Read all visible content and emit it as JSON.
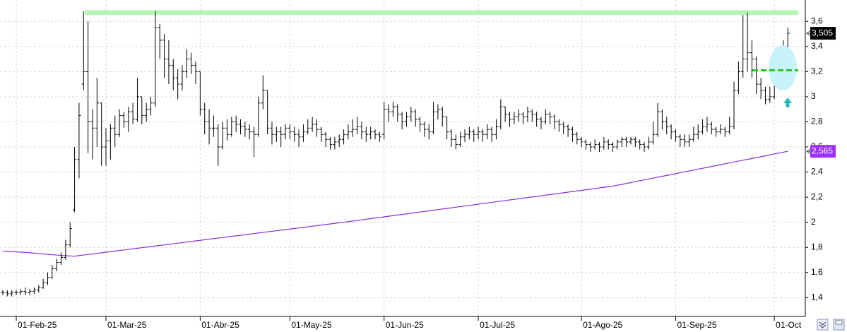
{
  "chart_data": {
    "type": "ohlc",
    "categories": [
      null,
      null,
      null,
      "01-Feb-25",
      null,
      null,
      null,
      null,
      null,
      null,
      null,
      null,
      null,
      null,
      null,
      null,
      null,
      null,
      null,
      null,
      null,
      null,
      null,
      "01-Mar-25",
      null,
      null,
      null,
      null,
      null,
      null,
      null,
      null,
      null,
      null,
      null,
      null,
      null,
      null,
      null,
      null,
      null,
      null,
      null,
      null,
      "01-Abr-25",
      null,
      null,
      null,
      null,
      null,
      null,
      null,
      null,
      null,
      null,
      null,
      null,
      null,
      null,
      null,
      null,
      null,
      null,
      null,
      "01-May-25",
      null,
      null,
      null,
      null,
      null,
      null,
      null,
      null,
      null,
      null,
      null,
      null,
      null,
      null,
      null,
      null,
      null,
      null,
      null,
      null,
      "01-Jun-25",
      null,
      null,
      null,
      null,
      null,
      null,
      null,
      null,
      null,
      null,
      null,
      null,
      null,
      null,
      null,
      null,
      null,
      null,
      null,
      null,
      "01-Jul-25",
      null,
      null,
      null,
      null,
      null,
      null,
      null,
      null,
      null,
      null,
      null,
      null,
      null,
      null,
      null,
      null,
      null,
      null,
      null,
      null,
      null,
      null,
      "01-Ago-25",
      null,
      null,
      null,
      null,
      null,
      null,
      null,
      null,
      null,
      null,
      null,
      null,
      null,
      null,
      null,
      null,
      null,
      null,
      null,
      null,
      "01-Sep-25",
      null,
      null,
      null,
      null,
      null,
      null,
      null,
      null,
      null,
      null,
      null,
      null,
      null,
      null,
      null,
      null,
      null,
      null,
      null,
      null,
      null,
      "01-Oct",
      null,
      null,
      null
    ],
    "open": [
      1.44,
      1.44,
      1.43,
      1.44,
      1.44,
      1.45,
      1.44,
      1.45,
      1.46,
      1.48,
      1.52,
      1.56,
      1.63,
      1.68,
      1.72,
      1.82,
      2.1,
      2.5,
      3.1,
      3.2,
      2.8,
      2.75,
      2.95,
      2.6,
      2.65,
      2.75,
      2.7,
      2.85,
      2.8,
      2.88,
      2.82,
      3.0,
      2.85,
      2.9,
      2.95,
      3.55,
      3.45,
      3.3,
      3.25,
      3.15,
      3.1,
      3.2,
      3.3,
      3.25,
      3.2,
      2.9,
      2.8,
      2.75,
      2.75,
      2.6,
      2.75,
      2.7,
      2.8,
      2.78,
      2.76,
      2.74,
      2.72,
      2.7,
      2.95,
      3.05,
      2.75,
      2.7,
      2.72,
      2.7,
      2.75,
      2.72,
      2.7,
      2.68,
      2.72,
      2.75,
      2.78,
      2.74,
      2.7,
      2.66,
      2.62,
      2.64,
      2.66,
      2.7,
      2.72,
      2.74,
      2.76,
      2.72,
      2.7,
      2.72,
      2.7,
      2.7,
      2.9,
      2.88,
      2.92,
      2.86,
      2.8,
      2.84,
      2.88,
      2.82,
      2.78,
      2.74,
      2.72,
      2.88,
      2.9,
      2.84,
      2.72,
      2.66,
      2.62,
      2.68,
      2.7,
      2.72,
      2.7,
      2.72,
      2.7,
      2.74,
      2.7,
      2.76,
      2.92,
      2.86,
      2.82,
      2.84,
      2.86,
      2.84,
      2.88,
      2.86,
      2.82,
      2.8,
      2.86,
      2.84,
      2.8,
      2.78,
      2.76,
      2.74,
      2.7,
      2.66,
      2.64,
      2.62,
      2.6,
      2.62,
      2.6,
      2.64,
      2.62,
      2.6,
      2.64,
      2.66,
      2.64,
      2.66,
      2.64,
      2.62,
      2.6,
      2.64,
      2.7,
      2.88,
      2.8,
      2.76,
      2.72,
      2.68,
      2.66,
      2.64,
      2.66,
      2.7,
      2.72,
      2.76,
      2.78,
      2.74,
      2.72,
      2.74,
      2.72,
      2.76,
      3.05,
      3.2,
      3.3,
      3.35,
      3.3,
      3.1,
      3.05,
      2.98,
      3.0,
      3.15,
      3.25,
      3.4
    ],
    "high": [
      1.46,
      1.46,
      1.46,
      1.46,
      1.47,
      1.48,
      1.47,
      1.48,
      1.5,
      1.55,
      1.6,
      1.66,
      1.71,
      1.76,
      1.86,
      2.0,
      2.6,
      2.95,
      3.68,
      3.6,
      2.9,
      3.15,
      2.95,
      2.75,
      2.78,
      2.85,
      2.9,
      2.88,
      2.92,
      2.95,
      3.15,
      3.0,
      2.95,
      3.0,
      3.68,
      3.58,
      3.5,
      3.45,
      3.3,
      3.22,
      3.25,
      3.38,
      3.35,
      3.28,
      3.2,
      2.95,
      2.9,
      2.85,
      2.78,
      2.8,
      2.82,
      2.84,
      2.85,
      2.82,
      2.8,
      2.78,
      2.76,
      3.0,
      3.17,
      3.05,
      2.8,
      2.76,
      2.76,
      2.78,
      2.78,
      2.76,
      2.74,
      2.78,
      2.82,
      2.84,
      2.82,
      2.76,
      2.72,
      2.68,
      2.68,
      2.7,
      2.74,
      2.78,
      2.82,
      2.84,
      2.8,
      2.76,
      2.76,
      2.74,
      2.72,
      2.96,
      2.94,
      2.96,
      2.94,
      2.88,
      2.88,
      2.92,
      2.9,
      2.84,
      2.8,
      2.78,
      2.96,
      2.94,
      2.92,
      2.84,
      2.74,
      2.7,
      2.72,
      2.74,
      2.76,
      2.74,
      2.76,
      2.74,
      2.78,
      2.76,
      2.82,
      2.98,
      2.92,
      2.88,
      2.88,
      2.9,
      2.88,
      2.92,
      2.9,
      2.88,
      2.84,
      2.9,
      2.88,
      2.86,
      2.82,
      2.8,
      2.78,
      2.76,
      2.72,
      2.68,
      2.66,
      2.64,
      2.66,
      2.64,
      2.68,
      2.66,
      2.64,
      2.66,
      2.68,
      2.68,
      2.68,
      2.68,
      2.66,
      2.64,
      2.68,
      2.8,
      2.95,
      2.9,
      2.84,
      2.78,
      2.74,
      2.7,
      2.7,
      2.7,
      2.76,
      2.78,
      2.82,
      2.84,
      2.8,
      2.76,
      2.78,
      2.76,
      2.84,
      3.12,
      3.28,
      3.65,
      3.67,
      3.45,
      3.32,
      3.15,
      3.08,
      3.08,
      3.2,
      3.32,
      3.45,
      3.55
    ],
    "low": [
      1.42,
      1.41,
      1.41,
      1.42,
      1.42,
      1.42,
      1.42,
      1.43,
      1.44,
      1.47,
      1.5,
      1.55,
      1.61,
      1.66,
      1.7,
      1.8,
      2.08,
      2.35,
      3.05,
      2.55,
      2.5,
      2.6,
      2.45,
      2.45,
      2.5,
      2.6,
      2.68,
      2.75,
      2.72,
      2.78,
      2.8,
      2.78,
      2.8,
      2.85,
      2.92,
      3.3,
      3.15,
      3.1,
      3.05,
      2.98,
      3.05,
      3.15,
      3.18,
      3.1,
      2.85,
      2.7,
      2.62,
      2.68,
      2.45,
      2.58,
      2.65,
      2.68,
      2.72,
      2.7,
      2.68,
      2.66,
      2.52,
      2.68,
      2.9,
      2.7,
      2.62,
      2.64,
      2.6,
      2.66,
      2.66,
      2.64,
      2.6,
      2.64,
      2.7,
      2.72,
      2.68,
      2.64,
      2.6,
      2.58,
      2.58,
      2.6,
      2.62,
      2.66,
      2.68,
      2.7,
      2.66,
      2.64,
      2.66,
      2.66,
      2.64,
      2.66,
      2.8,
      2.84,
      2.8,
      2.74,
      2.76,
      2.8,
      2.76,
      2.72,
      2.68,
      2.66,
      2.7,
      2.82,
      2.76,
      2.66,
      2.6,
      2.58,
      2.6,
      2.64,
      2.66,
      2.64,
      2.66,
      2.64,
      2.66,
      2.64,
      2.66,
      2.74,
      2.8,
      2.76,
      2.78,
      2.8,
      2.78,
      2.8,
      2.8,
      2.76,
      2.74,
      2.78,
      2.78,
      2.74,
      2.72,
      2.7,
      2.68,
      2.64,
      2.62,
      2.6,
      2.58,
      2.56,
      2.58,
      2.56,
      2.58,
      2.58,
      2.56,
      2.58,
      2.6,
      2.6,
      2.62,
      2.6,
      2.58,
      2.56,
      2.58,
      2.62,
      2.68,
      2.74,
      2.7,
      2.66,
      2.64,
      2.6,
      2.6,
      2.6,
      2.64,
      2.66,
      2.7,
      2.72,
      2.7,
      2.68,
      2.7,
      2.68,
      2.7,
      2.74,
      3.02,
      3.15,
      3.2,
      3.15,
      3.02,
      2.98,
      2.94,
      2.95,
      2.98,
      3.1,
      3.2,
      3.35
    ],
    "close": [
      1.44,
      1.43,
      1.44,
      1.44,
      1.45,
      1.44,
      1.45,
      1.46,
      1.48,
      1.52,
      1.56,
      1.63,
      1.68,
      1.72,
      1.82,
      1.95,
      2.5,
      2.85,
      3.2,
      2.8,
      2.75,
      2.95,
      2.6,
      2.65,
      2.75,
      2.7,
      2.85,
      2.8,
      2.88,
      2.82,
      3.0,
      2.85,
      2.9,
      2.95,
      3.55,
      3.45,
      3.3,
      3.25,
      3.15,
      3.1,
      3.2,
      3.3,
      3.25,
      3.2,
      2.9,
      2.8,
      2.75,
      2.75,
      2.6,
      2.75,
      2.7,
      2.8,
      2.78,
      2.76,
      2.74,
      2.72,
      2.7,
      2.95,
      3.05,
      2.75,
      2.7,
      2.72,
      2.7,
      2.75,
      2.72,
      2.7,
      2.68,
      2.72,
      2.75,
      2.78,
      2.74,
      2.7,
      2.66,
      2.62,
      2.64,
      2.66,
      2.7,
      2.72,
      2.74,
      2.76,
      2.72,
      2.7,
      2.72,
      2.7,
      2.68,
      2.9,
      2.88,
      2.92,
      2.86,
      2.8,
      2.84,
      2.88,
      2.82,
      2.78,
      2.74,
      2.72,
      2.88,
      2.9,
      2.84,
      2.72,
      2.66,
      2.62,
      2.68,
      2.7,
      2.72,
      2.7,
      2.72,
      2.7,
      2.74,
      2.7,
      2.76,
      2.92,
      2.86,
      2.82,
      2.84,
      2.86,
      2.84,
      2.88,
      2.86,
      2.82,
      2.8,
      2.86,
      2.84,
      2.8,
      2.78,
      2.76,
      2.74,
      2.7,
      2.66,
      2.64,
      2.62,
      2.6,
      2.62,
      2.6,
      2.64,
      2.62,
      2.6,
      2.64,
      2.66,
      2.64,
      2.66,
      2.64,
      2.62,
      2.6,
      2.64,
      2.7,
      2.88,
      2.8,
      2.76,
      2.72,
      2.68,
      2.66,
      2.64,
      2.66,
      2.7,
      2.72,
      2.76,
      2.78,
      2.74,
      2.72,
      2.74,
      2.72,
      2.76,
      3.05,
      3.2,
      3.3,
      3.35,
      3.3,
      3.1,
      3.05,
      2.98,
      3.0,
      3.15,
      3.25,
      3.4,
      3.505
    ],
    "bar_color": "#000000",
    "ma": {
      "color": "#8a2be2",
      "values": [
        1.77,
        1.768,
        1.766,
        1.764,
        1.762,
        1.76,
        1.757,
        1.754,
        1.751,
        1.748,
        1.745,
        1.742,
        1.739,
        1.736,
        1.734,
        1.732,
        1.73,
        1.735,
        1.739,
        1.744,
        1.748,
        1.753,
        1.757,
        1.762,
        1.766,
        1.771,
        1.775,
        1.78,
        1.784,
        1.789,
        1.793,
        1.798,
        1.802,
        1.807,
        1.811,
        1.816,
        1.82,
        1.825,
        1.829,
        1.834,
        1.838,
        1.843,
        1.847,
        1.852,
        1.856,
        1.861,
        1.865,
        1.87,
        1.874,
        1.879,
        1.883,
        1.888,
        1.892,
        1.897,
        1.901,
        1.906,
        1.91,
        1.915,
        1.919,
        1.924,
        1.928,
        1.933,
        1.937,
        1.942,
        1.946,
        1.951,
        1.955,
        1.96,
        1.964,
        1.969,
        1.973,
        1.978,
        1.982,
        1.987,
        1.991,
        1.996,
        2.0,
        2.005,
        2.01,
        2.014,
        2.019,
        2.024,
        2.029,
        2.034,
        2.038,
        2.043,
        2.048,
        2.053,
        2.058,
        2.062,
        2.067,
        2.072,
        2.077,
        2.082,
        2.086,
        2.091,
        2.096,
        2.101,
        2.106,
        2.11,
        2.115,
        2.12,
        2.125,
        2.13,
        2.134,
        2.139,
        2.144,
        2.149,
        2.154,
        2.158,
        2.163,
        2.168,
        2.173,
        2.178,
        2.182,
        2.187,
        2.192,
        2.197,
        2.202,
        2.206,
        2.211,
        2.216,
        2.221,
        2.226,
        2.23,
        2.235,
        2.24,
        2.245,
        2.25,
        2.254,
        2.259,
        2.264,
        2.269,
        2.274,
        2.278,
        2.283,
        2.288,
        2.295,
        2.302,
        2.309,
        2.316,
        2.324,
        2.331,
        2.338,
        2.345,
        2.352,
        2.359,
        2.366,
        2.373,
        2.38,
        2.387,
        2.395,
        2.402,
        2.409,
        2.416,
        2.423,
        2.43,
        2.437,
        2.444,
        2.451,
        2.458,
        2.466,
        2.473,
        2.48,
        2.487,
        2.494,
        2.501,
        2.508,
        2.515,
        2.522,
        2.529,
        2.537,
        2.544,
        2.551,
        2.558,
        2.565
      ]
    },
    "resistance": {
      "value": 3.67,
      "color": "#b8f5b8"
    },
    "support": {
      "value": 3.21,
      "color": "#22cc22"
    },
    "price_tags": [
      {
        "value": 3.505,
        "label": "3,505",
        "color": "#000000"
      },
      {
        "value": 2.565,
        "label": "2,565",
        "color": "#9b30ff"
      }
    ],
    "ylim": [
      1.25,
      3.77
    ],
    "yticks": [
      {
        "value": 1.4,
        "label": "1,4"
      },
      {
        "value": 1.6,
        "label": "1,6"
      },
      {
        "value": 1.8,
        "label": "1,8"
      },
      2,
      {
        "value": 2.2,
        "label": "2,2"
      },
      {
        "value": 2.4,
        "label": "2,4"
      },
      {
        "value": 2.6,
        "label": "2,6"
      },
      {
        "value": 2.8,
        "label": "2,8"
      },
      3,
      {
        "value": 3.2,
        "label": "3,2"
      },
      {
        "value": 3.4,
        "label": "3,4"
      },
      {
        "value": 3.6,
        "label": "3,6"
      }
    ],
    "grid": true
  }
}
